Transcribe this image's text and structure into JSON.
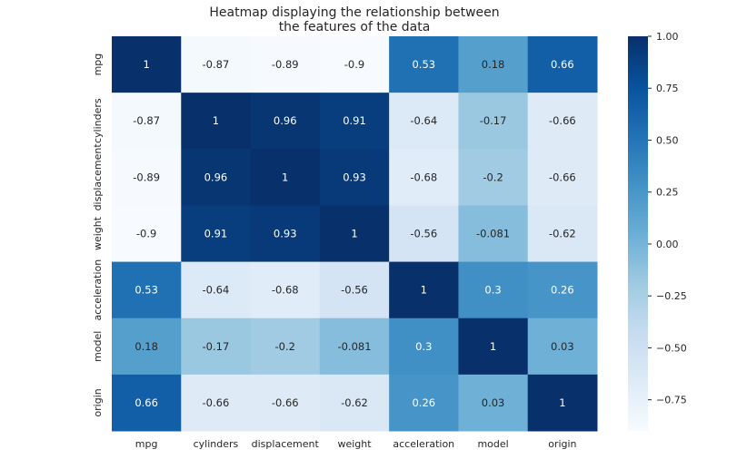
{
  "chart_data": {
    "type": "heatmap",
    "title": "Heatmap displaying the relationship between\nthe features of the data",
    "xlabel": "",
    "ylabel": "",
    "x_categories": [
      "mpg",
      "cylinders",
      "displacement",
      "weight",
      "acceleration",
      "model",
      "origin"
    ],
    "y_categories": [
      "mpg",
      "cylinders",
      "displacement",
      "weight",
      "acceleration",
      "model",
      "origin"
    ],
    "values": [
      [
        1,
        -0.87,
        -0.89,
        -0.9,
        0.53,
        0.18,
        0.66
      ],
      [
        -0.87,
        1,
        0.96,
        0.91,
        -0.64,
        -0.17,
        -0.66
      ],
      [
        -0.89,
        0.96,
        1,
        0.93,
        -0.68,
        -0.2,
        -0.66
      ],
      [
        -0.9,
        0.91,
        0.93,
        1,
        -0.56,
        -0.081,
        -0.62
      ],
      [
        0.53,
        -0.64,
        -0.68,
        -0.56,
        1,
        0.3,
        0.26
      ],
      [
        0.18,
        -0.17,
        -0.2,
        -0.081,
        0.3,
        1,
        0.03
      ],
      [
        0.66,
        -0.66,
        -0.66,
        -0.62,
        0.26,
        0.03,
        1
      ]
    ],
    "annotations": [
      [
        "1",
        "-0.87",
        "-0.89",
        "-0.9",
        "0.53",
        "0.18",
        "0.66"
      ],
      [
        "-0.87",
        "1",
        "0.96",
        "0.91",
        "-0.64",
        "-0.17",
        "-0.66"
      ],
      [
        "-0.89",
        "0.96",
        "1",
        "0.93",
        "-0.68",
        "-0.2",
        "-0.66"
      ],
      [
        "-0.9",
        "0.91",
        "0.93",
        "1",
        "-0.56",
        "-0.081",
        "-0.62"
      ],
      [
        "0.53",
        "-0.64",
        "-0.68",
        "-0.56",
        "1",
        "0.3",
        "0.26"
      ],
      [
        "0.18",
        "-0.17",
        "-0.2",
        "-0.081",
        "0.3",
        "1",
        "0.03"
      ],
      [
        "0.66",
        "-0.66",
        "-0.66",
        "-0.62",
        "0.26",
        "0.03",
        "1"
      ]
    ],
    "colormap": "Blues",
    "vmin": -0.9,
    "vmax": 1.0,
    "colorbar_ticks": [
      1.0,
      0.75,
      0.5,
      0.25,
      0.0,
      -0.25,
      -0.5,
      -0.75
    ],
    "colorbar_tick_labels": [
      "1.00",
      "0.75",
      "0.50",
      "0.25",
      "0.00",
      "−0.25",
      "−0.50",
      "−0.75"
    ],
    "colorbar_position": "right",
    "grid": false
  }
}
